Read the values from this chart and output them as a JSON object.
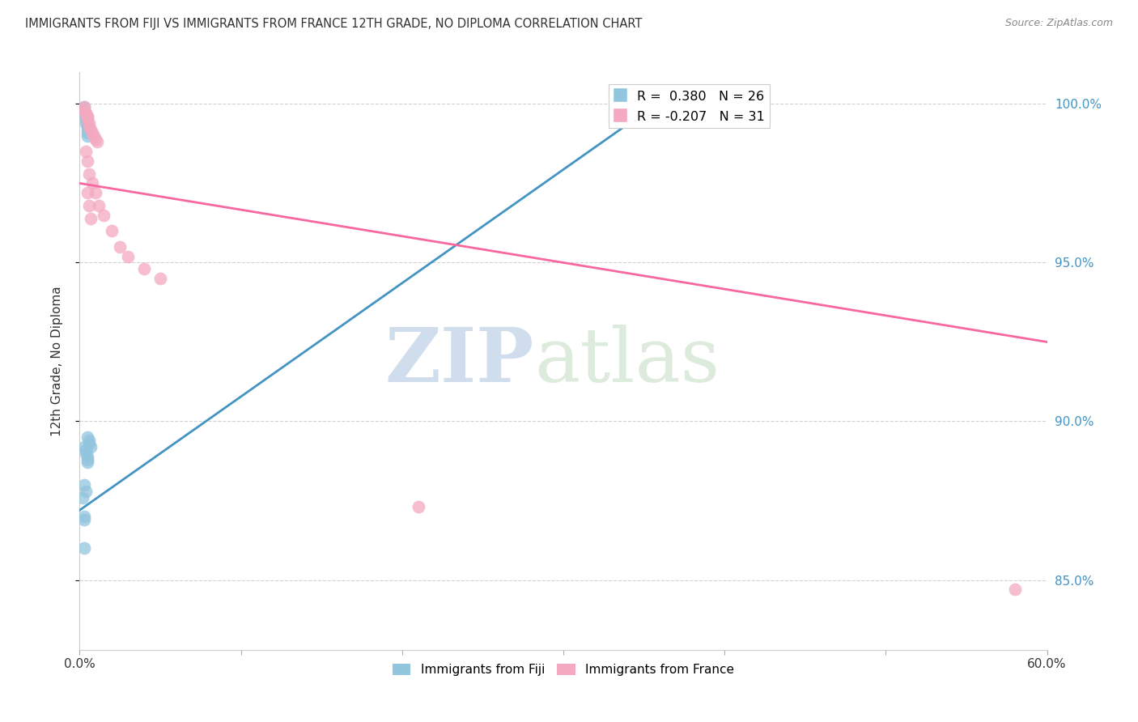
{
  "title": "IMMIGRANTS FROM FIJI VS IMMIGRANTS FROM FRANCE 12TH GRADE, NO DIPLOMA CORRELATION CHART",
  "source": "Source: ZipAtlas.com",
  "ylabel_left": "12th Grade, No Diploma",
  "x_min": 0.0,
  "x_max": 0.6,
  "y_min": 0.828,
  "y_max": 1.01,
  "right_yticks": [
    1.0,
    0.95,
    0.9,
    0.85
  ],
  "right_yticklabels": [
    "100.0%",
    "95.0%",
    "90.0%",
    "85.0%"
  ],
  "xticks": [
    0.0,
    0.1,
    0.2,
    0.3,
    0.4,
    0.5,
    0.6
  ],
  "xticklabels": [
    "0.0%",
    "",
    "",
    "",
    "",
    "",
    "60.0%"
  ],
  "fiji_R": 0.38,
  "fiji_N": 26,
  "france_R": -0.207,
  "france_N": 31,
  "fiji_color": "#92c5de",
  "france_color": "#f4a9c0",
  "fiji_line_color": "#4393c3",
  "france_line_color": "#f768a1",
  "watermark_zip": "ZIP",
  "watermark_atlas": "atlas",
  "fiji_scatter_x": [
    0.003,
    0.003,
    0.003,
    0.004,
    0.004,
    0.004,
    0.005,
    0.005,
    0.005,
    0.005,
    0.005,
    0.006,
    0.006,
    0.007,
    0.003,
    0.004,
    0.004,
    0.005,
    0.005,
    0.005,
    0.003,
    0.004,
    0.002,
    0.003,
    0.003,
    0.003
  ],
  "fiji_scatter_y": [
    0.999,
    0.998,
    0.997,
    0.996,
    0.995,
    0.994,
    0.993,
    0.992,
    0.991,
    0.99,
    0.895,
    0.894,
    0.893,
    0.892,
    0.892,
    0.891,
    0.89,
    0.889,
    0.888,
    0.887,
    0.88,
    0.878,
    0.876,
    0.87,
    0.869,
    0.86
  ],
  "france_scatter_x": [
    0.003,
    0.003,
    0.004,
    0.004,
    0.005,
    0.005,
    0.005,
    0.006,
    0.006,
    0.007,
    0.008,
    0.009,
    0.01,
    0.011,
    0.004,
    0.005,
    0.006,
    0.008,
    0.01,
    0.012,
    0.015,
    0.02,
    0.025,
    0.03,
    0.04,
    0.005,
    0.006,
    0.007,
    0.05,
    0.21,
    0.58
  ],
  "france_scatter_y": [
    0.999,
    0.998,
    0.997,
    0.997,
    0.996,
    0.996,
    0.995,
    0.994,
    0.993,
    0.992,
    0.991,
    0.99,
    0.989,
    0.988,
    0.985,
    0.982,
    0.978,
    0.975,
    0.972,
    0.968,
    0.965,
    0.96,
    0.955,
    0.952,
    0.948,
    0.972,
    0.968,
    0.964,
    0.945,
    0.873,
    0.847
  ],
  "fiji_trend_x": [
    0.0,
    0.355
  ],
  "fiji_trend_y": [
    0.872,
    0.999
  ],
  "france_trend_x": [
    0.0,
    0.6
  ],
  "france_trend_y": [
    0.975,
    0.925
  ]
}
